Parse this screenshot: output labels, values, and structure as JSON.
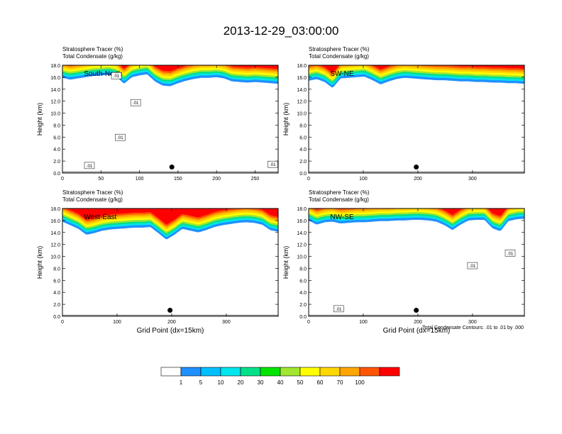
{
  "figure": {
    "title": "2013-12-29_03:00:00",
    "footnote": "Total Condensate Contours: .01 to .01 by .000"
  },
  "colorbar": {
    "colors": [
      "#ffffff",
      "#1e90ff",
      "#00bfff",
      "#00e5ee",
      "#00e08a",
      "#00e400",
      "#a0e632",
      "#ffff00",
      "#ffd700",
      "#ffa500",
      "#ff5500",
      "#ff0000"
    ],
    "labels": [
      "1",
      "5",
      "10",
      "20",
      "30",
      "40",
      "50",
      "60",
      "70",
      "100"
    ]
  },
  "chart_data": [
    {
      "type": "heatmap",
      "label": "South-North",
      "line1": "Stratosphere Tracer   (%)",
      "line2": "Total Condensate   (g/kg)",
      "ylabel": "Height (km)",
      "xlabel": "",
      "xlim": [
        0,
        280
      ],
      "ylim": [
        0,
        18
      ],
      "xticks": [
        0,
        50,
        100,
        150,
        200,
        250
      ],
      "yticks": [
        "0.0",
        "2.0",
        "4.0",
        "6.0",
        "8.0",
        "10.0",
        "12.0",
        "14.0",
        "16.0",
        "18.0"
      ],
      "tropopause_km": [
        15.9,
        15.6,
        15.8,
        16.0,
        16.2,
        16.3,
        16.4,
        16.1,
        14.9,
        16.0,
        16.3,
        16.5,
        15.3,
        14.6,
        14.5,
        15.0,
        15.4,
        15.7,
        15.9,
        15.9,
        16.0,
        15.8,
        15.3,
        15.2,
        15.1,
        15.2,
        15.1,
        15.0,
        14.9
      ],
      "contour_labels": [
        {
          "text": ".01",
          "x": 70,
          "y": 16.2
        },
        {
          "text": ".01",
          "x": 95,
          "y": 11.7
        },
        {
          "text": ".01",
          "x": 75,
          "y": 5.9
        },
        {
          "text": ".01",
          "x": 35,
          "y": 1.2
        },
        {
          "text": ".01",
          "x": 273,
          "y": 1.4
        }
      ],
      "marker": {
        "x": 142,
        "y": 1.0
      }
    },
    {
      "type": "heatmap",
      "label": "SW-NE",
      "line1": "Stratosphere Tracer   (%)",
      "line2": "Total Condensate   (g/kg)",
      "ylabel": "Height (km)",
      "xlabel": "",
      "xlim": [
        0,
        395
      ],
      "ylim": [
        0,
        18
      ],
      "xticks": [
        0,
        100,
        200,
        300
      ],
      "yticks": [
        "0.0",
        "2.0",
        "4.0",
        "6.0",
        "8.0",
        "10.0",
        "12.0",
        "14.0",
        "16.0",
        "18.0"
      ],
      "tropopause_km": [
        15.4,
        15.7,
        15.2,
        14.2,
        15.8,
        15.9,
        16.0,
        16.1,
        15.5,
        14.8,
        15.3,
        15.7,
        15.9,
        15.8,
        15.7,
        15.6,
        15.5,
        15.5,
        15.4,
        15.3,
        15.3,
        15.2,
        15.2,
        15.1,
        15.1,
        15.0,
        15.0,
        14.9
      ],
      "contour_labels": [],
      "marker": {
        "x": 197,
        "y": 1.0
      }
    },
    {
      "type": "heatmap",
      "label": "West-East",
      "line1": "Stratosphere Tracer   (%)",
      "line2": "Total Condensate   (g/kg)",
      "ylabel": "Height (km)",
      "xlabel": "Grid Point (dx=15km)",
      "xlim": [
        0,
        395
      ],
      "ylim": [
        0,
        18
      ],
      "xticks": [
        0,
        100,
        200,
        300
      ],
      "yticks": [
        "0.0",
        "2.0",
        "4.0",
        "6.0",
        "8.0",
        "10.0",
        "12.0",
        "14.0",
        "16.0",
        "18.0"
      ],
      "tropopause_km": [
        15.8,
        15.2,
        14.6,
        13.6,
        13.9,
        14.3,
        14.5,
        14.6,
        14.7,
        14.8,
        14.8,
        14.9,
        13.9,
        12.8,
        13.6,
        14.6,
        14.3,
        14.0,
        14.4,
        14.9,
        15.2,
        15.4,
        15.6,
        15.7,
        15.6,
        15.3,
        14.4,
        14.1
      ],
      "contour_labels": [],
      "marker": {
        "x": 197,
        "y": 1.0
      }
    },
    {
      "type": "heatmap",
      "label": "NW-SE",
      "line1": "Stratosphere Tracer   (%)",
      "line2": "Total Condensate   (g/kg)",
      "ylabel": "Height (km)",
      "xlabel": "Grid Point (dx=15km)",
      "xlim": [
        0,
        395
      ],
      "ylim": [
        0,
        18
      ],
      "xticks": [
        0,
        100,
        200,
        300
      ],
      "yticks": [
        "0.0",
        "2.0",
        "4.0",
        "6.0",
        "8.0",
        "10.0",
        "12.0",
        "14.0",
        "16.0",
        "18.0"
      ],
      "tropopause_km": [
        16.0,
        15.3,
        15.7,
        15.8,
        15.5,
        15.6,
        15.7,
        15.7,
        15.8,
        15.9,
        15.9,
        16.0,
        16.0,
        16.1,
        16.1,
        16.0,
        15.8,
        15.2,
        14.4,
        15.3,
        16.0,
        16.1,
        16.1,
        14.7,
        14.2,
        15.9,
        16.2,
        16.3
      ],
      "contour_labels": [
        {
          "text": ".01",
          "x": 369,
          "y": 10.5
        },
        {
          "text": ".01",
          "x": 300,
          "y": 8.4
        },
        {
          "text": ".01",
          "x": 55,
          "y": 1.2
        }
      ],
      "marker": {
        "x": 197,
        "y": 1.0
      }
    }
  ]
}
